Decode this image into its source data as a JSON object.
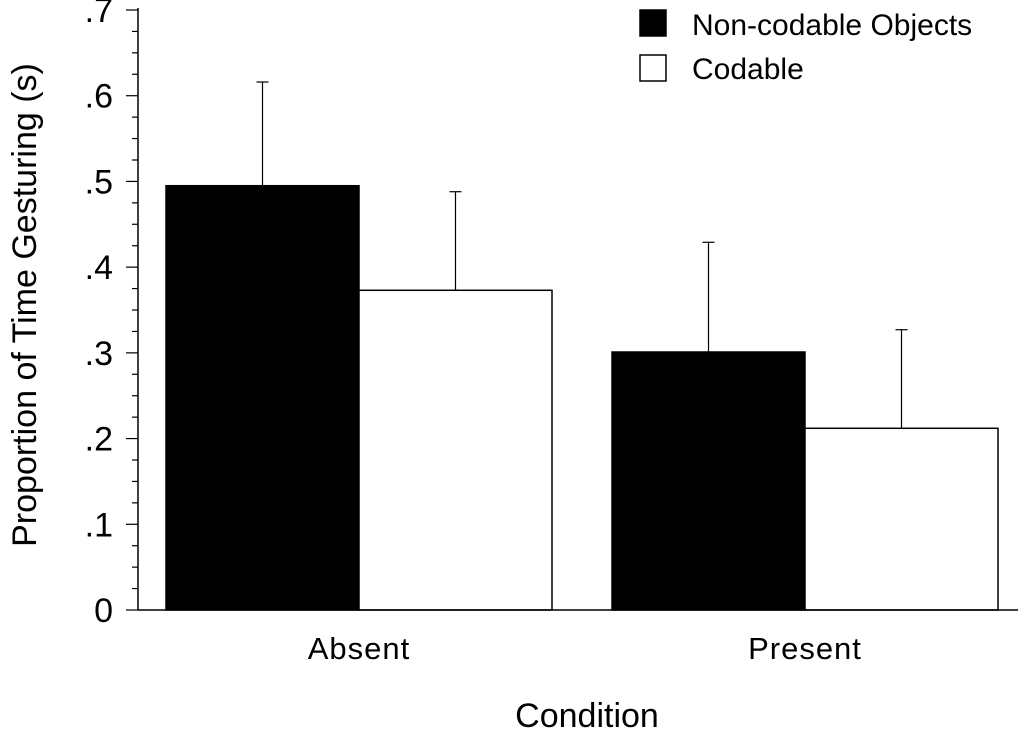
{
  "chart_data": {
    "type": "bar",
    "title": "",
    "xlabel": "Condition",
    "ylabel": "Proportion of Time Gesturing (s)",
    "categories": [
      "Absent",
      "Present"
    ],
    "series": [
      {
        "name": "Non-codable Objects",
        "values": [
          0.495,
          0.301
        ],
        "errors": [
          0.121,
          0.128
        ],
        "color": "#000000"
      },
      {
        "name": "Codable",
        "values": [
          0.373,
          0.212
        ],
        "errors": [
          0.115,
          0.115
        ],
        "color": "#ffffff"
      }
    ],
    "ylim": [
      0,
      0.7
    ],
    "yticks": [
      {
        "value": 0,
        "label": "0"
      },
      {
        "value": 0.1,
        "label": ".1"
      },
      {
        "value": 0.2,
        "label": ".2"
      },
      {
        "value": 0.3,
        "label": ".3"
      },
      {
        "value": 0.4,
        "label": ".4"
      },
      {
        "value": 0.5,
        "label": ".5"
      },
      {
        "value": 0.6,
        "label": ".6"
      },
      {
        "value": 0.7,
        "label": ".7"
      }
    ],
    "minor_tick_step": 0.025,
    "error_bars": "upper",
    "legend_position": "top-right",
    "grid": false
  }
}
